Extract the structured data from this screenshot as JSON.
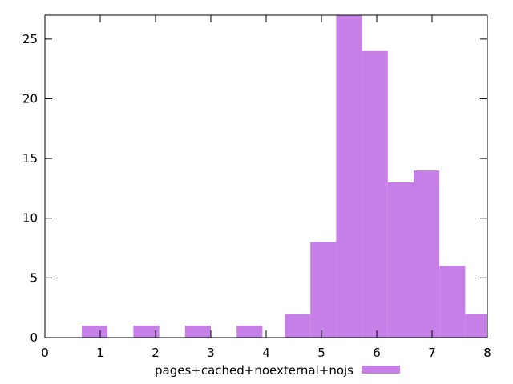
{
  "chart_data": {
    "type": "bar",
    "title": "",
    "xlabel": "",
    "ylabel": "",
    "xlim": [
      0,
      8
    ],
    "ylim": [
      0,
      27
    ],
    "x_ticks": [
      0,
      1,
      2,
      3,
      4,
      5,
      6,
      7,
      8
    ],
    "y_ticks": [
      0,
      5,
      10,
      15,
      20,
      25
    ],
    "grid": false,
    "legend_position": "bottom",
    "series": [
      {
        "name": "pages+cached+noexternal+nojs",
        "color": "#c77fe8",
        "bins": [
          {
            "start": 0.6667,
            "end": 1.1333,
            "count": 1
          },
          {
            "start": 1.6,
            "end": 2.0667,
            "count": 1
          },
          {
            "start": 2.5333,
            "end": 3.0,
            "count": 1
          },
          {
            "start": 3.4667,
            "end": 3.9333,
            "count": 1
          },
          {
            "start": 4.3333,
            "end": 4.8,
            "count": 2
          },
          {
            "start": 4.8,
            "end": 5.2667,
            "count": 8
          },
          {
            "start": 5.2667,
            "end": 5.7333,
            "count": 27
          },
          {
            "start": 5.7333,
            "end": 6.2,
            "count": 24
          },
          {
            "start": 6.2,
            "end": 6.6667,
            "count": 13
          },
          {
            "start": 6.6667,
            "end": 7.1333,
            "count": 14
          },
          {
            "start": 7.1333,
            "end": 7.6,
            "count": 6
          },
          {
            "start": 7.6,
            "end": 8.0,
            "count": 2
          }
        ]
      }
    ]
  }
}
